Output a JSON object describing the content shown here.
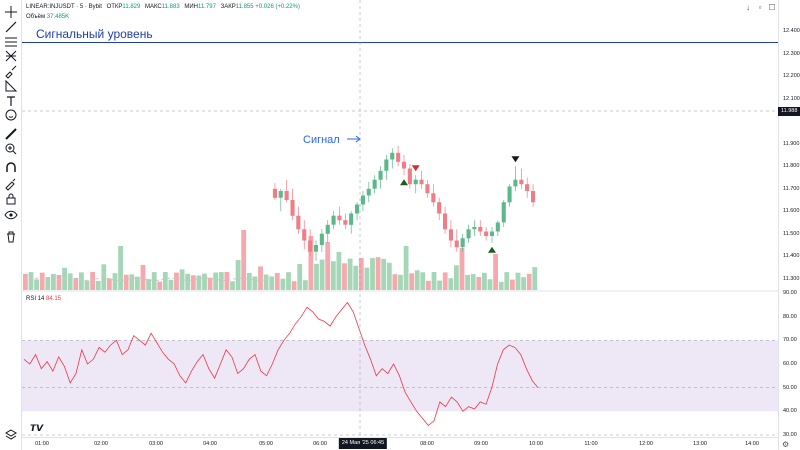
{
  "header": {
    "symbol": "LINEAR:INJUSDT · 5 · Bybit",
    "open_label": "ОТКР",
    "open_value": "11.829",
    "high_label": "МАКС",
    "high_value": "11.883",
    "low_label": "МИН",
    "low_value": "11.797",
    "close_label": "ЗАКР",
    "close_value": "11.855",
    "change": "+0.026 (+0.22%)",
    "volume_label": "Объём",
    "volume_value": "37.485K"
  },
  "rsi": {
    "label": "RSI 14",
    "value": "84.15"
  },
  "annotations": {
    "level_label": "Сигнальный уровень",
    "signal_label": "Сигнал"
  },
  "price_scale": {
    "ticks": [
      "12.400",
      "12.300",
      "12.200",
      "12.100",
      "11.900",
      "11.800",
      "11.700",
      "11.600",
      "11.500",
      "11.400",
      "11.300"
    ],
    "current": "11.988"
  },
  "rsi_scale": {
    "ticks": [
      "90.00",
      "80.00",
      "70.00",
      "60.00",
      "50.00",
      "40.00",
      "30.00"
    ]
  },
  "time_axis": {
    "ticks": [
      "01:00",
      "02:00",
      "03:00",
      "04:00",
      "05:00",
      "06:00",
      "08:00",
      "09:00",
      "10:00",
      "11:00",
      "12:00",
      "13:00",
      "14:00"
    ],
    "cursor": "24 Мая '25   06:45"
  },
  "colors": {
    "up": "#089981",
    "down": "#f23645",
    "vol_up": "#a5d6b7",
    "vol_down": "#f5a9ae",
    "level": "#1e3fae",
    "signal_text": "#2962ff",
    "rsi_line": "#f23645",
    "rsi_band": "#ede7f6"
  },
  "icons": [
    "crosshair-icon",
    "trend-line-icon",
    "horizontal-lines-icon",
    "pitchfork-icon",
    "brush-icon",
    "shapes-icon",
    "text-icon",
    "emoji-icon",
    "ruler-icon",
    "zoom-icon",
    "magnet-icon",
    "lock-draw-icon",
    "lock-icon",
    "eye-icon",
    "trash-icon",
    "layers-icon"
  ],
  "chart_data": {
    "type": "candlestick",
    "interval": "5m",
    "ohlc": [
      [
        11.7,
        11.725,
        11.65,
        11.66
      ],
      [
        11.66,
        11.7,
        11.6,
        11.69
      ],
      [
        11.69,
        11.74,
        11.64,
        11.65
      ],
      [
        11.65,
        11.7,
        11.56,
        11.58
      ],
      [
        11.58,
        11.62,
        11.5,
        11.52
      ],
      [
        11.52,
        11.56,
        11.43,
        11.47
      ],
      [
        11.47,
        11.52,
        11.4,
        11.42
      ],
      [
        11.42,
        11.47,
        11.38,
        11.45
      ],
      [
        11.45,
        11.52,
        11.42,
        11.5
      ],
      [
        11.5,
        11.56,
        11.46,
        11.54
      ],
      [
        11.54,
        11.6,
        11.52,
        11.58
      ],
      [
        11.58,
        11.62,
        11.54,
        11.56
      ],
      [
        11.56,
        11.59,
        11.52,
        11.54
      ],
      [
        11.54,
        11.6,
        11.5,
        11.59
      ],
      [
        11.59,
        11.64,
        11.56,
        11.63
      ],
      [
        11.63,
        11.69,
        11.6,
        11.67
      ],
      [
        11.67,
        11.73,
        11.64,
        11.7
      ],
      [
        11.7,
        11.76,
        11.68,
        11.74
      ],
      [
        11.74,
        11.8,
        11.7,
        11.78
      ],
      [
        11.78,
        11.85,
        11.74,
        11.83
      ],
      [
        11.83,
        11.88,
        11.79,
        11.86
      ],
      [
        11.86,
        11.89,
        11.8,
        11.82
      ],
      [
        11.82,
        11.85,
        11.76,
        11.79
      ],
      [
        11.79,
        11.81,
        11.7,
        11.72
      ],
      [
        11.72,
        11.76,
        11.68,
        11.74
      ],
      [
        11.74,
        11.78,
        11.7,
        11.72
      ],
      [
        11.72,
        11.74,
        11.66,
        11.68
      ],
      [
        11.68,
        11.72,
        11.62,
        11.64
      ],
      [
        11.64,
        11.66,
        11.56,
        11.59
      ],
      [
        11.59,
        11.62,
        11.5,
        11.52
      ],
      [
        11.52,
        11.56,
        11.44,
        11.47
      ],
      [
        11.47,
        11.52,
        11.42,
        11.44
      ],
      [
        11.44,
        11.5,
        11.42,
        11.48
      ],
      [
        11.48,
        11.54,
        11.46,
        11.52
      ],
      [
        11.52,
        11.56,
        11.49,
        11.53
      ],
      [
        11.53,
        11.56,
        11.49,
        11.51
      ],
      [
        11.51,
        11.53,
        11.47,
        11.49
      ],
      [
        11.49,
        11.53,
        11.46,
        11.51
      ],
      [
        11.51,
        11.56,
        11.49,
        11.55
      ],
      [
        11.55,
        11.65,
        11.53,
        11.64
      ],
      [
        11.64,
        11.72,
        11.62,
        11.71
      ],
      [
        11.71,
        11.8,
        11.69,
        11.74
      ],
      [
        11.74,
        11.79,
        11.7,
        11.72
      ],
      [
        11.72,
        11.75,
        11.66,
        11.69
      ],
      [
        11.69,
        11.72,
        11.62,
        11.64
      ]
    ],
    "volume_bars": 92,
    "signals": [
      {
        "type": "buy",
        "index": 22
      },
      {
        "type": "sell",
        "index": 24
      },
      {
        "type": "buy",
        "index": 37
      },
      {
        "type": "sell",
        "index": 41
      }
    ],
    "signal_level": 12.35,
    "ylim": [
      11.25,
      12.45
    ],
    "rsi_ylim": [
      30,
      90
    ],
    "rsi_band": [
      40,
      70
    ],
    "rsi_values": [
      62,
      60,
      64,
      58,
      61,
      57,
      63,
      59,
      52,
      56,
      66,
      60,
      62,
      67,
      65,
      68,
      70,
      64,
      66,
      72,
      70,
      68,
      73,
      69,
      65,
      62,
      60,
      55,
      52,
      57,
      61,
      64,
      58,
      54,
      60,
      66,
      63,
      56,
      58,
      62,
      64,
      57,
      55,
      60,
      66,
      70,
      73,
      77,
      80,
      84,
      82,
      79,
      78,
      76,
      80,
      83,
      86,
      82,
      75,
      68,
      62,
      55,
      58,
      56,
      60,
      55,
      48,
      44,
      40,
      37,
      34,
      36,
      44,
      42,
      46,
      44,
      40,
      42,
      41,
      44,
      43,
      50,
      60,
      66,
      68,
      67,
      64,
      58,
      53,
      50
    ]
  }
}
